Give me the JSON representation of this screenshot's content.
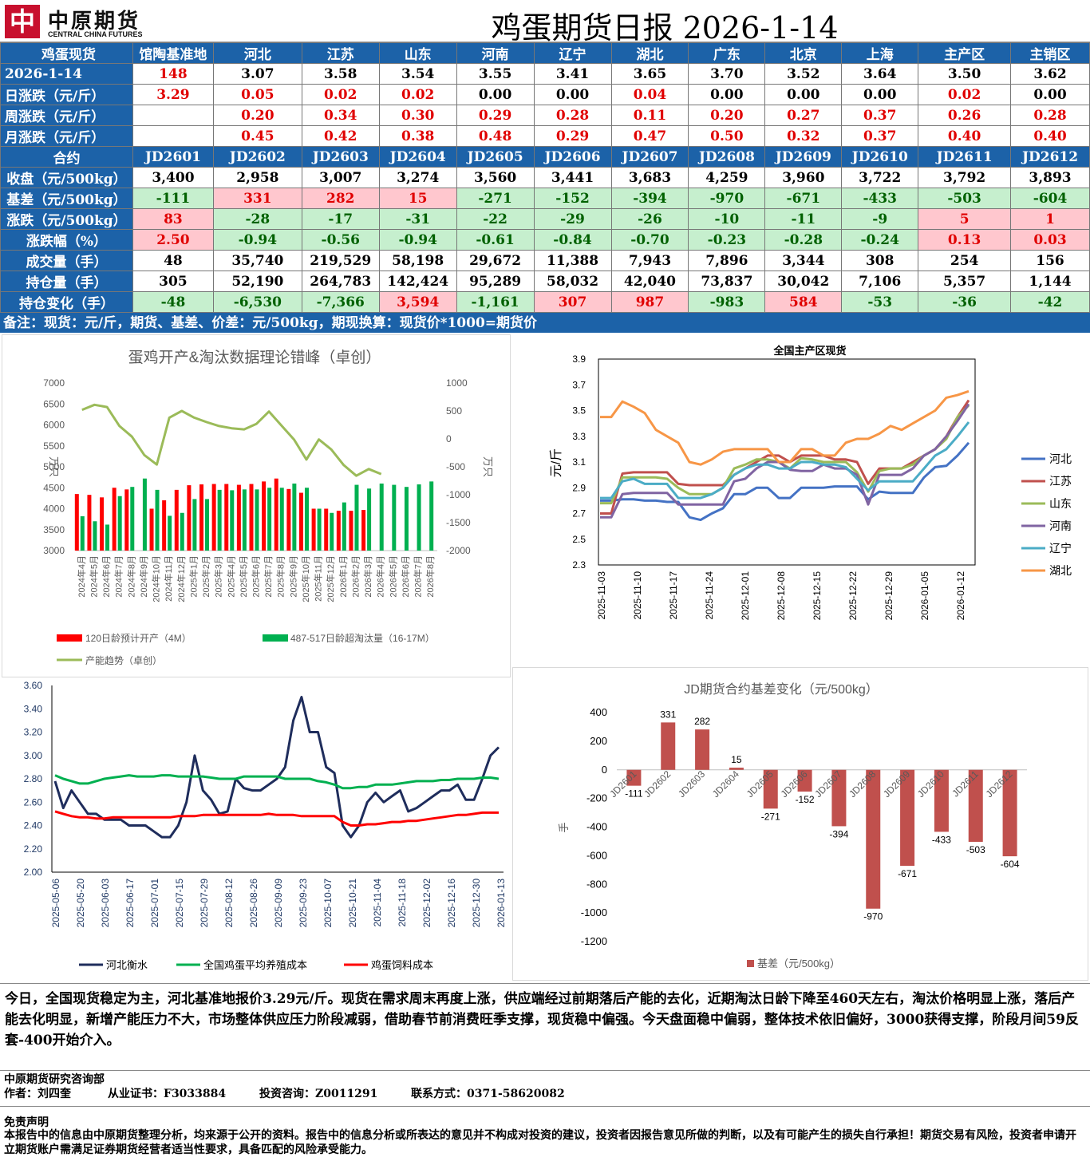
{
  "header": {
    "logo_cn": "中原期货",
    "logo_en": "CENTRAL CHINA FUTURES",
    "title": "鸡蛋期货日报 2026-1-14"
  },
  "spot": {
    "head": [
      "鸡蛋现货",
      "馆陶基准地",
      "河北",
      "江苏",
      "山东",
      "河南",
      "辽宁",
      "湖北",
      "广东",
      "北京",
      "上海",
      "主产区",
      "主销区"
    ],
    "rows": [
      {
        "label": "2026-1-14",
        "cells": [
          "148",
          "3.07",
          "3.58",
          "3.54",
          "3.55",
          "3.41",
          "3.65",
          "3.70",
          "3.52",
          "3.64",
          "3.50",
          "3.62"
        ]
      },
      {
        "label": "日涨跌（元/斤）",
        "cells": [
          "3.29",
          "0.05",
          "0.02",
          "0.02",
          "0.00",
          "0.00",
          "0.04",
          "0.00",
          "0.00",
          "0.00",
          "0.02",
          "0.00"
        ]
      },
      {
        "label": "周涨跌（元/斤）",
        "cells": [
          "",
          "0.20",
          "0.34",
          "0.30",
          "0.29",
          "0.28",
          "0.11",
          "0.20",
          "0.27",
          "0.37",
          "0.26",
          "0.28"
        ]
      },
      {
        "label": "月涨跌（元/斤）",
        "cells": [
          "",
          "0.45",
          "0.42",
          "0.38",
          "0.48",
          "0.29",
          "0.47",
          "0.50",
          "0.32",
          "0.37",
          "0.40",
          "0.40"
        ]
      }
    ]
  },
  "futures": {
    "head": [
      "合约",
      "JD2601",
      "JD2602",
      "JD2603",
      "JD2604",
      "JD2605",
      "JD2606",
      "JD2607",
      "JD2608",
      "JD2609",
      "JD2610",
      "JD2611",
      "JD2612"
    ],
    "rows": [
      {
        "label": "收盘（元/500kg）",
        "cells": [
          "3,400",
          "2,958",
          "3,007",
          "3,274",
          "3,560",
          "3,441",
          "3,683",
          "4,259",
          "3,960",
          "3,722",
          "3,792",
          "3,893"
        ]
      },
      {
        "label": "基差（元/500kg）",
        "cells": [
          "-111",
          "331",
          "282",
          "15",
          "-271",
          "-152",
          "-394",
          "-970",
          "-671",
          "-433",
          "-503",
          "-604"
        ]
      },
      {
        "label": "涨跌（元/500kg）",
        "cells": [
          "83",
          "-28",
          "-17",
          "-31",
          "-22",
          "-29",
          "-26",
          "-10",
          "-11",
          "-9",
          "5",
          "1"
        ]
      },
      {
        "label": "涨跌幅（%）",
        "cells": [
          "2.50",
          "-0.94",
          "-0.56",
          "-0.94",
          "-0.61",
          "-0.84",
          "-0.70",
          "-0.23",
          "-0.28",
          "-0.24",
          "0.13",
          "0.03"
        ]
      },
      {
        "label": "成交量（手）",
        "cells": [
          "48",
          "35,740",
          "219,529",
          "58,198",
          "29,672",
          "11,388",
          "7,943",
          "7,896",
          "3,344",
          "308",
          "254",
          "156"
        ]
      },
      {
        "label": "持仓量（手）",
        "cells": [
          "305",
          "52,190",
          "264,783",
          "142,424",
          "95,289",
          "58,032",
          "42,040",
          "73,837",
          "30,042",
          "7,106",
          "5,357",
          "1,144"
        ]
      },
      {
        "label": "持仓变化（手）",
        "cells": [
          "-48",
          "-6,530",
          "-7,366",
          "3,594",
          "-1,161",
          "307",
          "987",
          "-983",
          "584",
          "-53",
          "-36",
          "-42"
        ]
      }
    ]
  },
  "note": "备注：现货：元/斤，期货、基差、价差：元/500kg，期现换算：现货价*1000=期货价",
  "chart_data": [
    {
      "type": "bar",
      "title": "蛋鸡开产&淘汰数据理论错峰（卓创）",
      "ylabel": "万只",
      "y2label": "万只",
      "ylim": [
        3000,
        7000
      ],
      "y2lim": [
        -2000,
        1000
      ],
      "categories": [
        "2024年4月",
        "2024年5月",
        "2024年6月",
        "2024年7月",
        "2024年8月",
        "2024年9月",
        "2024年10月",
        "2024年11月",
        "2024年12月",
        "2025年1月",
        "2025年2月",
        "2025年3月",
        "2025年4月",
        "2025年5月",
        "2025年6月",
        "2025年7月",
        "2025年8月",
        "2025年9月",
        "2025年10月",
        "2025年11月",
        "2025年12月",
        "2026年1月",
        "2026年2月",
        "2026年3月",
        "2026年4月",
        "2026年5月",
        "2026年6月",
        "2026年7月",
        "2026年8月"
      ],
      "series": [
        {
          "name": "120日龄预计开产（4M）",
          "color": "#ff0000",
          "axis": "left",
          "values": [
            4350,
            4330,
            4270,
            4500,
            4460,
            null,
            4000,
            4200,
            4450,
            4560,
            4580,
            4590,
            4590,
            4570,
            4590,
            4650,
            4720,
            4470,
            4380,
            4000,
            4000,
            3950,
            3950,
            3970,
            null,
            null,
            null,
            null,
            null
          ]
        },
        {
          "name": "487-517日龄超淘汰量（16-17M）",
          "color": "#00b050",
          "axis": "left",
          "values": [
            3820,
            3700,
            3620,
            4300,
            4520,
            4720,
            4450,
            3830,
            3900,
            4230,
            4230,
            4450,
            4440,
            4460,
            4460,
            4500,
            4500,
            4600,
            4500,
            4000,
            3900,
            4150,
            4570,
            4480,
            4600,
            4570,
            4520,
            4580,
            4650
          ]
        },
        {
          "name": "产能趋势（卓创）",
          "color": "#9bbb59",
          "axis": "right",
          "type": "line",
          "values": [
            520,
            610,
            570,
            230,
            40,
            -290,
            -460,
            380,
            500,
            380,
            300,
            230,
            190,
            170,
            270,
            490,
            240,
            -10,
            -370,
            -10,
            -190,
            -470,
            -660,
            -540,
            -630,
            null,
            null,
            null,
            null
          ]
        }
      ]
    },
    {
      "type": "line",
      "title": "全国主产区现货",
      "ylabel": "元/斤",
      "ylim": [
        2.3,
        3.9
      ],
      "yticks": [
        "2.3",
        "2.5",
        "2.7",
        "2.9",
        "3.1",
        "3.3",
        "3.5",
        "3.7",
        "3.9"
      ],
      "x_ticks": [
        "2025-11-03",
        "2025-11-10",
        "2025-11-17",
        "2025-11-24",
        "2025-12-01",
        "2025-12-08",
        "2025-12-15",
        "2025-12-22",
        "2025-12-29",
        "2026-01-05",
        "2026-01-12"
      ],
      "series": [
        {
          "name": "河北",
          "color": "#4472c4",
          "values": [
            2.8,
            2.8,
            2.81,
            2.81,
            2.8,
            2.8,
            2.79,
            2.79,
            2.67,
            2.65,
            2.7,
            2.74,
            2.85,
            2.85,
            2.9,
            2.9,
            2.82,
            2.82,
            2.9,
            2.9,
            2.9,
            2.91,
            2.91,
            2.91,
            2.81,
            2.87,
            2.86,
            2.86,
            2.86,
            2.98,
            3.06,
            3.07,
            3.15,
            3.25
          ]
        },
        {
          "name": "江苏",
          "color": "#c0504d",
          "values": [
            2.7,
            2.7,
            3.01,
            3.02,
            3.02,
            3.02,
            3.02,
            2.93,
            2.92,
            2.92,
            2.92,
            2.92,
            3.0,
            3.05,
            3.1,
            3.15,
            3.15,
            3.1,
            3.15,
            3.15,
            3.15,
            3.12,
            3.12,
            3.1,
            2.93,
            3.05,
            3.05,
            3.05,
            3.1,
            3.15,
            3.2,
            3.3,
            3.45,
            3.58
          ]
        },
        {
          "name": "山东",
          "color": "#9bbb59",
          "values": [
            2.78,
            2.78,
            2.98,
            2.98,
            2.98,
            2.98,
            2.97,
            2.9,
            2.85,
            2.85,
            2.85,
            2.9,
            3.05,
            3.08,
            3.12,
            3.12,
            3.1,
            3.05,
            3.13,
            3.12,
            3.1,
            3.1,
            3.1,
            3.02,
            2.87,
            3.03,
            3.05,
            3.05,
            3.08,
            3.15,
            3.2,
            3.28,
            3.45,
            3.54
          ]
        },
        {
          "name": "河南",
          "color": "#8064a2",
          "values": [
            2.67,
            2.67,
            2.85,
            2.86,
            2.86,
            2.86,
            2.86,
            2.77,
            2.77,
            2.77,
            2.77,
            2.77,
            2.95,
            2.97,
            3.05,
            3.1,
            3.1,
            3.04,
            3.03,
            3.03,
            3.08,
            3.05,
            3.05,
            3.0,
            2.77,
            3.0,
            3.0,
            3.0,
            3.05,
            3.15,
            3.2,
            3.3,
            3.42,
            3.55
          ]
        },
        {
          "name": "辽宁",
          "color": "#4bacc6",
          "values": [
            2.82,
            2.82,
            2.95,
            2.97,
            2.93,
            2.93,
            2.93,
            2.82,
            2.82,
            2.82,
            2.85,
            2.9,
            3.0,
            3.05,
            3.08,
            3.08,
            3.05,
            3.05,
            3.1,
            3.1,
            3.08,
            3.08,
            3.06,
            2.97,
            2.88,
            2.95,
            2.95,
            2.95,
            2.95,
            3.05,
            3.15,
            3.2,
            3.3,
            3.41
          ]
        },
        {
          "name": "湖北",
          "color": "#f79646",
          "values": [
            3.45,
            3.45,
            3.57,
            3.53,
            3.48,
            3.35,
            3.3,
            3.25,
            3.1,
            3.08,
            3.12,
            3.18,
            3.2,
            3.2,
            3.2,
            3.2,
            3.1,
            3.1,
            3.2,
            3.2,
            3.15,
            3.15,
            3.25,
            3.28,
            3.28,
            3.32,
            3.38,
            3.35,
            3.4,
            3.45,
            3.5,
            3.6,
            3.62,
            3.65
          ]
        }
      ]
    },
    {
      "type": "line",
      "ylim": [
        2.0,
        3.6
      ],
      "yticks": [
        "2.00",
        "2.20",
        "2.40",
        "2.60",
        "2.80",
        "3.00",
        "3.20",
        "3.40",
        "3.60"
      ],
      "x_ticks": [
        "2025-05-06",
        "2025-05-20",
        "2025-06-03",
        "2025-06-17",
        "2025-07-01",
        "2025-07-15",
        "2025-07-29",
        "2025-08-12",
        "2025-08-26",
        "2025-09-09",
        "2025-09-23",
        "2025-10-07",
        "2025-10-21",
        "2025-11-04",
        "2025-11-18",
        "2025-12-02",
        "2025-12-16",
        "2025-12-30",
        "2026-01-13"
      ],
      "series": [
        {
          "name": "河北衡水",
          "color": "#1f2d5c",
          "values": [
            2.78,
            2.55,
            2.7,
            2.6,
            2.5,
            2.5,
            2.45,
            2.45,
            2.45,
            2.4,
            2.4,
            2.4,
            2.35,
            2.3,
            2.3,
            2.4,
            2.6,
            3.0,
            2.7,
            2.62,
            2.5,
            2.52,
            2.8,
            2.72,
            2.7,
            2.7,
            2.75,
            2.8,
            2.9,
            3.3,
            3.5,
            3.2,
            3.2,
            2.9,
            2.85,
            2.4,
            2.3,
            2.4,
            2.6,
            2.68,
            2.6,
            2.65,
            2.7,
            2.52,
            2.55,
            2.6,
            2.65,
            2.7,
            2.7,
            2.75,
            2.62,
            2.62,
            2.8,
            3.0,
            3.07
          ]
        },
        {
          "name": "全国鸡蛋平均养殖成本",
          "color": "#00b050",
          "values": [
            2.83,
            2.8,
            2.78,
            2.76,
            2.76,
            2.78,
            2.8,
            2.81,
            2.82,
            2.83,
            2.82,
            2.82,
            2.82,
            2.83,
            2.83,
            2.82,
            2.82,
            2.82,
            2.82,
            2.81,
            2.8,
            2.8,
            2.8,
            2.82,
            2.82,
            2.82,
            2.82,
            2.82,
            2.8,
            2.8,
            2.8,
            2.8,
            2.78,
            2.77,
            2.75,
            2.72,
            2.72,
            2.73,
            2.73,
            2.75,
            2.75,
            2.75,
            2.76,
            2.77,
            2.78,
            2.78,
            2.78,
            2.79,
            2.79,
            2.8,
            2.8,
            2.8,
            2.81,
            2.81,
            2.8
          ]
        },
        {
          "name": "鸡蛋饲料成本",
          "color": "#ff0000",
          "values": [
            2.52,
            2.5,
            2.48,
            2.47,
            2.47,
            2.46,
            2.46,
            2.47,
            2.47,
            2.47,
            2.47,
            2.47,
            2.47,
            2.47,
            2.47,
            2.48,
            2.48,
            2.48,
            2.49,
            2.49,
            2.49,
            2.49,
            2.49,
            2.49,
            2.49,
            2.49,
            2.5,
            2.49,
            2.49,
            2.49,
            2.48,
            2.48,
            2.48,
            2.48,
            2.48,
            2.43,
            2.4,
            2.4,
            2.41,
            2.41,
            2.42,
            2.43,
            2.43,
            2.44,
            2.44,
            2.45,
            2.46,
            2.47,
            2.48,
            2.49,
            2.49,
            2.5,
            2.51,
            2.51,
            2.51
          ]
        }
      ]
    },
    {
      "type": "bar",
      "title": "JD期货合约基差变化（元/500kg）",
      "ylabel": "手",
      "ylim": [
        -1200,
        400
      ],
      "yticks": [
        "400",
        "200",
        "0",
        "-200",
        "-400",
        "-600",
        "-800",
        "-1000",
        "-1200"
      ],
      "categories": [
        "JD2601",
        "JD2602",
        "JD2603",
        "JD2604",
        "JD2605",
        "JD2606",
        "JD2607",
        "JD2608",
        "JD2609",
        "JD2610",
        "JD2611",
        "JD2612"
      ],
      "series": [
        {
          "name": "基差（元/500kg）",
          "color": "#c0504d",
          "values": [
            -111,
            331,
            282,
            15,
            -271,
            -152,
            -394,
            -970,
            -671,
            -433,
            -503,
            -604
          ]
        }
      ]
    }
  ],
  "chart_labels": {
    "c1": {
      "y_left": [
        "7000",
        "6500",
        "6000",
        "5500",
        "5000",
        "4500",
        "4000",
        "3500",
        "3000"
      ],
      "y_right": [
        "1000",
        "500",
        "0",
        "-500",
        "-1000",
        "-1500",
        "-2000"
      ]
    }
  },
  "summary": "今日，全国现货稳定为主，河北基准地报价3.29元/斤。现货在需求周末再度上涨，供应端经过前期落后产能的去化，近期淘汰日龄下降至460天左右，淘汰价格明显上涨，落后产能去化明显，新增产能压力不大，市场整体供应压力阶段减弱，借助春节前消费旺季支撑，现货稳中偏强。今天盘面稳中偏弱，整体技术依旧偏好，3000获得支撑，阶段月间59反套-400开始介入。",
  "footer": {
    "dept": "中原期货研究咨询部",
    "author": "作者：刘四奎",
    "cert": "从业证书：F3033884",
    "consult": "投资咨询：Z0011291",
    "contact": "联系方式：0371-58620082",
    "disclaimer_title": "免责声明",
    "disclaimer": "本报告中的信息由中原期货整理分析，均来源于公开的资料。报告中的信息分析或所表达的意见并不构成对投资的建议，投资者因报告意见所做的判断，以及有可能产生的损失自行承担！期货交易有风险，投资者申请开立期货账户需满足证券期货经营者适当性要求，具备匹配的风险承受能力。"
  }
}
